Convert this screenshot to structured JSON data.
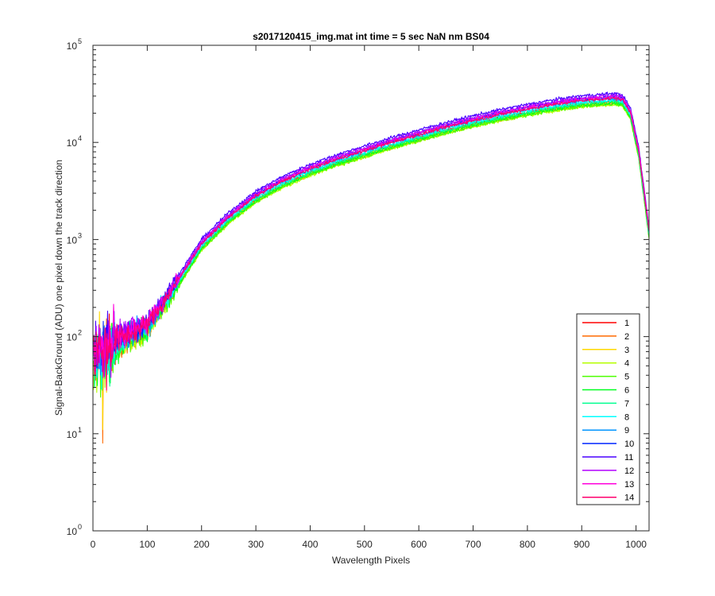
{
  "chart_data": {
    "type": "line",
    "title": "s2017120415_img.mat int time = 5 sec  NaN nm BS04",
    "xlabel": "Wavelength Pixels",
    "ylabel": "Signal-BackGround (ADU) one pixel down the track direction",
    "xlim": [
      0,
      1024
    ],
    "ylim": [
      1,
      100000
    ],
    "yscale": "log",
    "grid": false,
    "legend_position": "bottom-right",
    "x_ticks": [
      "0",
      "100",
      "200",
      "300",
      "400",
      "500",
      "600",
      "700",
      "800",
      "900",
      "1000"
    ],
    "x_tick_values": [
      0,
      100,
      200,
      300,
      400,
      500,
      600,
      700,
      800,
      900,
      1000
    ],
    "y_ticks": [
      {
        "value": 1,
        "base": "10",
        "exp": "0"
      },
      {
        "value": 10,
        "base": "10",
        "exp": "1"
      },
      {
        "value": 100,
        "base": "10",
        "exp": "2"
      },
      {
        "value": 1000,
        "base": "10",
        "exp": "3"
      },
      {
        "value": 10000,
        "base": "10",
        "exp": "4"
      },
      {
        "value": 100000,
        "base": "10",
        "exp": "5"
      }
    ],
    "reference_x": [
      1,
      20,
      50,
      100,
      150,
      200,
      250,
      300,
      350,
      400,
      450,
      500,
      550,
      600,
      650,
      700,
      750,
      800,
      850,
      900,
      940,
      960,
      975,
      990,
      1005,
      1024
    ],
    "reference_y": [
      70,
      75,
      95,
      130,
      330,
      900,
      1700,
      2800,
      4000,
      5300,
      6700,
      8200,
      10000,
      12000,
      14300,
      16800,
      19400,
      22000,
      24600,
      27000,
      28000,
      28500,
      27500,
      20000,
      8000,
      1200
    ],
    "series": [
      {
        "name": "1",
        "color": "#ff0000",
        "scale": 0.93
      },
      {
        "name": "2",
        "color": "#ff6a00",
        "scale": 0.88
      },
      {
        "name": "3",
        "color": "#ffd800",
        "scale": 0.9
      },
      {
        "name": "4",
        "color": "#b6ff00",
        "scale": 0.86
      },
      {
        "name": "5",
        "color": "#4cff00",
        "scale": 0.87
      },
      {
        "name": "6",
        "color": "#00ff21",
        "scale": 0.9
      },
      {
        "name": "7",
        "color": "#00ff90",
        "scale": 0.93
      },
      {
        "name": "8",
        "color": "#00ffff",
        "scale": 0.96
      },
      {
        "name": "9",
        "color": "#0094ff",
        "scale": 1.0
      },
      {
        "name": "10",
        "color": "#0026ff",
        "scale": 1.04
      },
      {
        "name": "11",
        "color": "#4800ff",
        "scale": 1.12
      },
      {
        "name": "12",
        "color": "#b200ff",
        "scale": 1.07
      },
      {
        "name": "13",
        "color": "#ff00dc",
        "scale": 1.03
      },
      {
        "name": "14",
        "color": "#ff006e",
        "scale": 1.0
      }
    ]
  }
}
